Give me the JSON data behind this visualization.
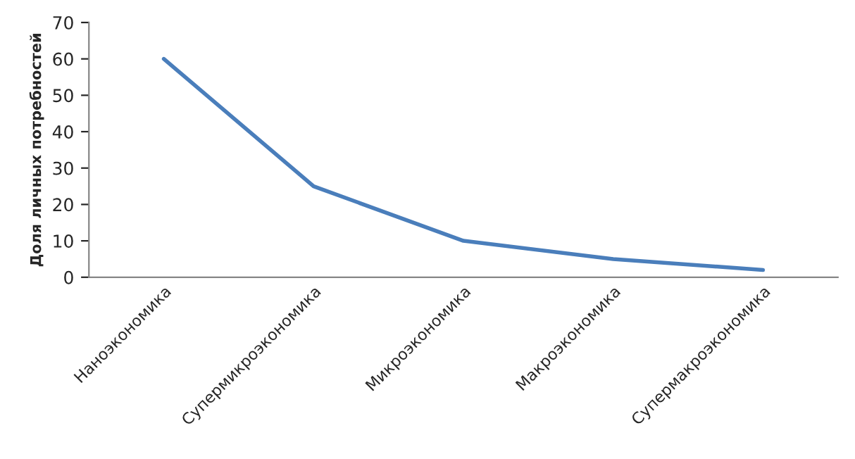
{
  "chart_data": {
    "type": "line",
    "ylabel": "Доля личных потребностей",
    "categories": [
      "Наноэкономика",
      "Супермикроэкономика",
      "Микроэкономика",
      "Макроэкономика",
      "Супермакроэкономика"
    ],
    "series": [
      {
        "color": "#4a7ebb",
        "values": [
          60,
          25,
          10,
          5,
          2
        ]
      }
    ],
    "ylim": [
      0,
      70
    ],
    "yticks": [
      0,
      10,
      20,
      30,
      40,
      50,
      60,
      70
    ],
    "grid": false,
    "marker": "none",
    "line_style": "solid"
  }
}
